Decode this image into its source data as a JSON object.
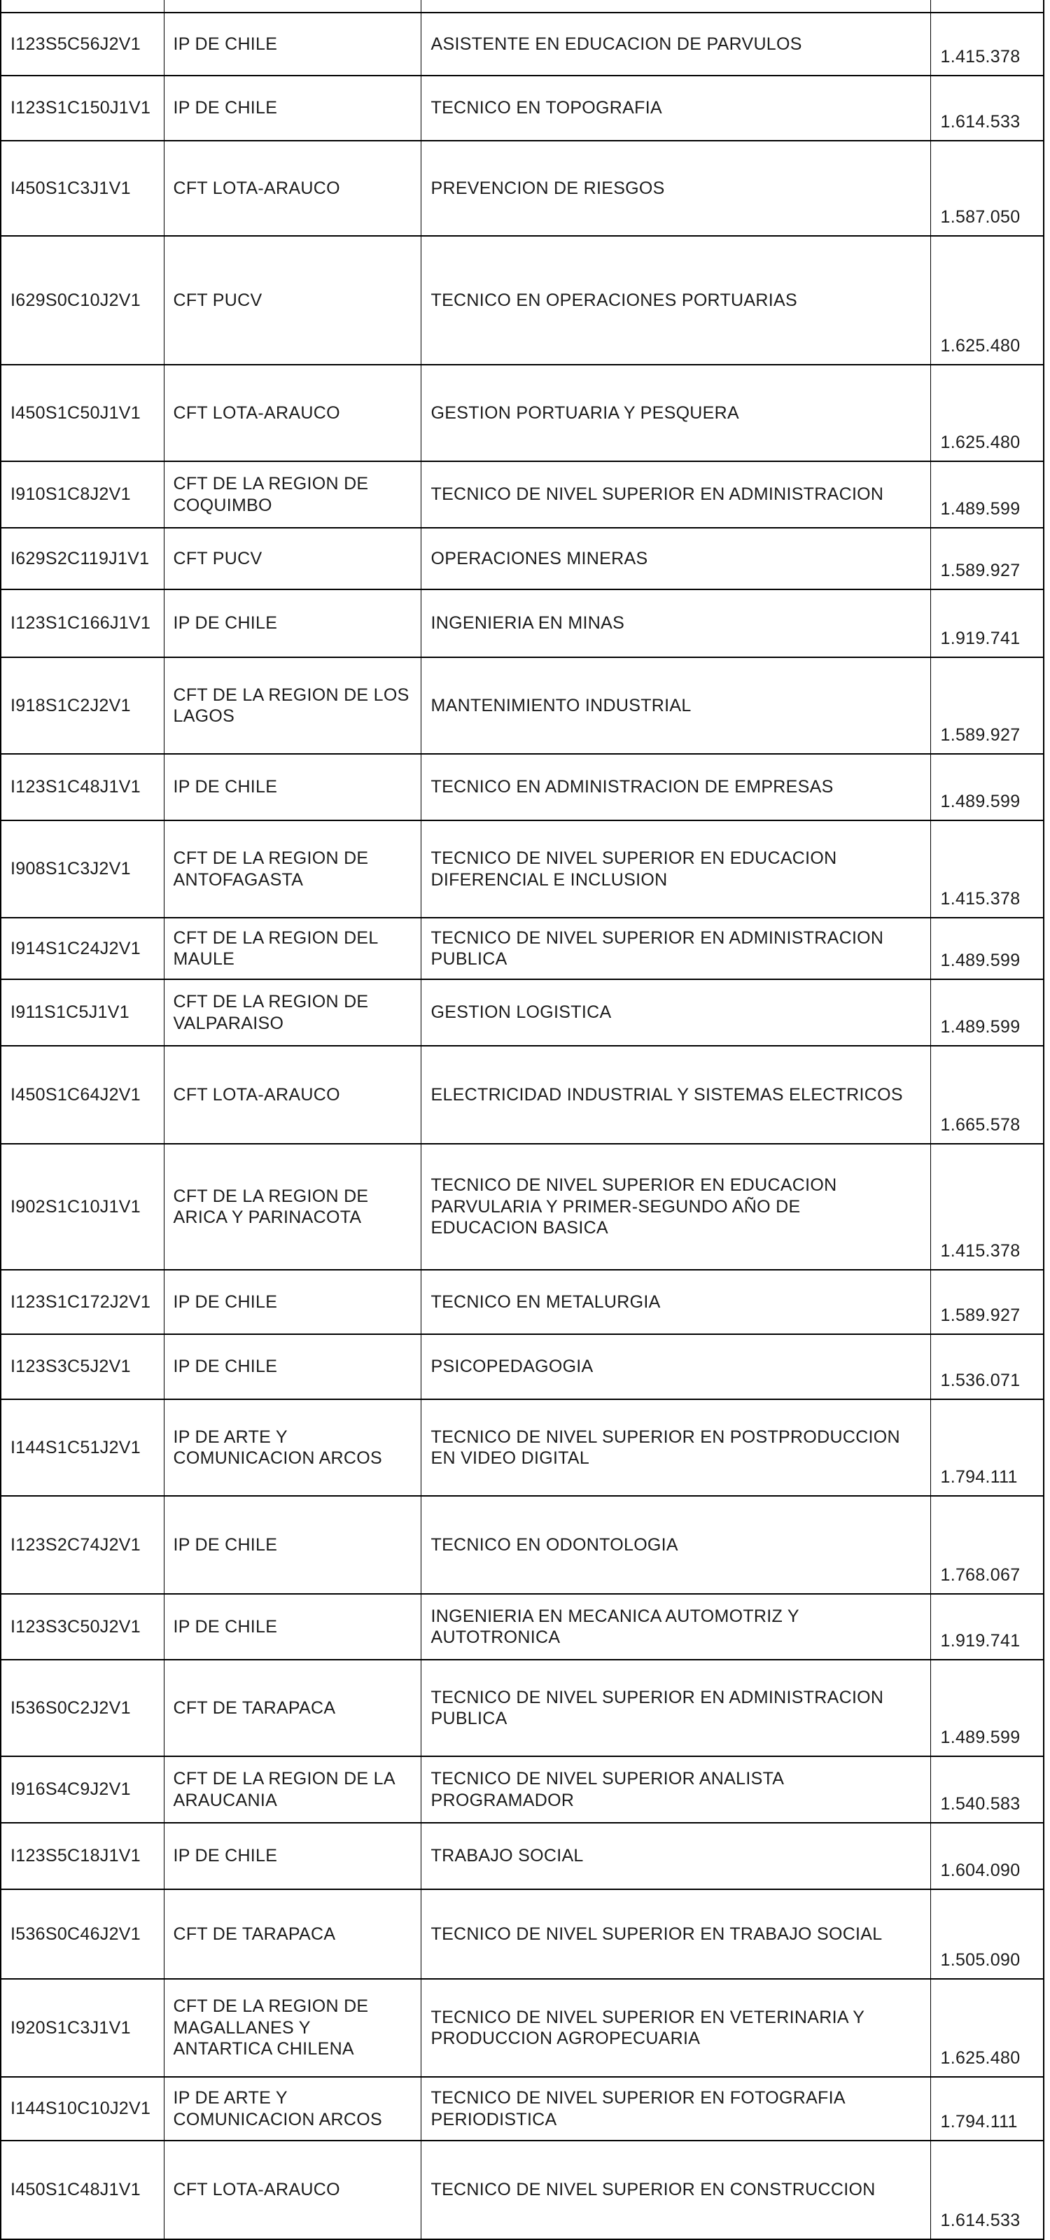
{
  "table": {
    "column_keys": [
      "code",
      "institution",
      "program",
      "value"
    ],
    "rows": [
      {
        "code": "I123S5C56J2V1",
        "institution": "IP DE CHILE",
        "program": "ASISTENTE EN EDUCACION DE PARVULOS",
        "value": "1.415.378"
      },
      {
        "code": "I123S1C150J1V1",
        "institution": "IP DE CHILE",
        "program": "TECNICO EN TOPOGRAFIA",
        "value": "1.614.533"
      },
      {
        "code": "I450S1C3J1V1",
        "institution": "CFT LOTA-ARAUCO",
        "program": "PREVENCION DE RIESGOS",
        "value": "1.587.050"
      },
      {
        "code": "I629S0C10J2V1",
        "institution": "CFT PUCV",
        "program": "TECNICO EN OPERACIONES PORTUARIAS",
        "value": "1.625.480"
      },
      {
        "code": "I450S1C50J1V1",
        "institution": "CFT LOTA-ARAUCO",
        "program": "GESTION PORTUARIA Y PESQUERA",
        "value": "1.625.480"
      },
      {
        "code": "I910S1C8J2V1",
        "institution": "CFT DE LA REGION DE\nCOQUIMBO",
        "program": "TECNICO DE NIVEL SUPERIOR EN ADMINISTRACION",
        "value": "1.489.599"
      },
      {
        "code": "I629S2C119J1V1",
        "institution": "CFT PUCV",
        "program": "OPERACIONES MINERAS",
        "value": "1.589.927"
      },
      {
        "code": "I123S1C166J1V1",
        "institution": "IP DE CHILE",
        "program": "INGENIERIA EN MINAS",
        "value": "1.919.741"
      },
      {
        "code": "I918S1C2J2V1",
        "institution": "CFT DE LA REGION DE LOS\nLAGOS",
        "program": "MANTENIMIENTO INDUSTRIAL",
        "value": "1.589.927"
      },
      {
        "code": "I123S1C48J1V1",
        "institution": "IP DE CHILE",
        "program": "TECNICO EN ADMINISTRACION DE EMPRESAS",
        "value": "1.489.599"
      },
      {
        "code": "I908S1C3J2V1",
        "institution": "CFT DE LA REGION DE\nANTOFAGASTA",
        "program": "TECNICO DE NIVEL SUPERIOR EN EDUCACION\nDIFERENCIAL E INCLUSION",
        "value": "1.415.378"
      },
      {
        "code": "I914S1C24J2V1",
        "institution": "CFT DE LA REGION DEL\nMAULE",
        "program": "TECNICO DE NIVEL SUPERIOR EN ADMINISTRACION\nPUBLICA",
        "value": "1.489.599"
      },
      {
        "code": "I911S1C5J1V1",
        "institution": "CFT DE LA REGION DE\nVALPARAISO",
        "program": "GESTION LOGISTICA",
        "value": "1.489.599"
      },
      {
        "code": "I450S1C64J2V1",
        "institution": "CFT LOTA-ARAUCO",
        "program": "ELECTRICIDAD INDUSTRIAL Y SISTEMAS ELECTRICOS",
        "value": "1.665.578"
      },
      {
        "code": "I902S1C10J1V1",
        "institution": "CFT DE LA REGION DE\nARICA Y PARINACOTA",
        "program": "TECNICO DE NIVEL SUPERIOR EN EDUCACION\nPARVULARIA Y PRIMER-SEGUNDO AÑO DE\nEDUCACION BASICA",
        "value": "1.415.378"
      },
      {
        "code": "I123S1C172J2V1",
        "institution": "IP DE CHILE",
        "program": "TECNICO EN METALURGIA",
        "value": "1.589.927"
      },
      {
        "code": "I123S3C5J2V1",
        "institution": "IP DE CHILE",
        "program": "PSICOPEDAGOGIA",
        "value": "1.536.071"
      },
      {
        "code": "I144S1C51J2V1",
        "institution": "IP DE ARTE Y\nCOMUNICACION ARCOS",
        "program": "TECNICO DE NIVEL SUPERIOR EN POSTPRODUCCION\nEN VIDEO DIGITAL",
        "value": "1.794.111"
      },
      {
        "code": "I123S2C74J2V1",
        "institution": "IP DE CHILE",
        "program": "TECNICO EN ODONTOLOGIA",
        "value": "1.768.067"
      },
      {
        "code": "I123S3C50J2V1",
        "institution": "IP DE CHILE",
        "program": "INGENIERIA EN MECANICA AUTOMOTRIZ Y\nAUTOTRONICA",
        "value": "1.919.741"
      },
      {
        "code": "I536S0C2J2V1",
        "institution": "CFT DE TARAPACA",
        "program": "TECNICO DE NIVEL SUPERIOR EN ADMINISTRACION\nPUBLICA",
        "value": "1.489.599"
      },
      {
        "code": "I916S4C9J2V1",
        "institution": "CFT DE LA REGION DE LA\nARAUCANIA",
        "program": "TECNICO DE NIVEL SUPERIOR ANALISTA\nPROGRAMADOR",
        "value": "1.540.583"
      },
      {
        "code": "I123S5C18J1V1",
        "institution": "IP DE CHILE",
        "program": "TRABAJO SOCIAL",
        "value": "1.604.090"
      },
      {
        "code": "I536S0C46J2V1",
        "institution": "CFT DE TARAPACA",
        "program": "TECNICO DE NIVEL SUPERIOR EN TRABAJO SOCIAL",
        "value": "1.505.090"
      },
      {
        "code": "I920S1C3J1V1",
        "institution": "CFT DE LA REGION DE\nMAGALLANES Y\nANTARTICA CHILENA",
        "program": "TECNICO DE NIVEL SUPERIOR EN VETERINARIA Y\nPRODUCCION AGROPECUARIA",
        "value": "1.625.480"
      },
      {
        "code": "I144S10C10J2V1",
        "institution": "IP DE ARTE Y\nCOMUNICACION ARCOS",
        "program": "TECNICO DE NIVEL SUPERIOR EN FOTOGRAFIA\nPERIODISTICA",
        "value": "1.794.111"
      },
      {
        "code": "I450S1C48J1V1",
        "institution": "CFT LOTA-ARAUCO",
        "program": "TECNICO DE NIVEL SUPERIOR EN CONSTRUCCION",
        "value": "1.614.533"
      }
    ]
  }
}
